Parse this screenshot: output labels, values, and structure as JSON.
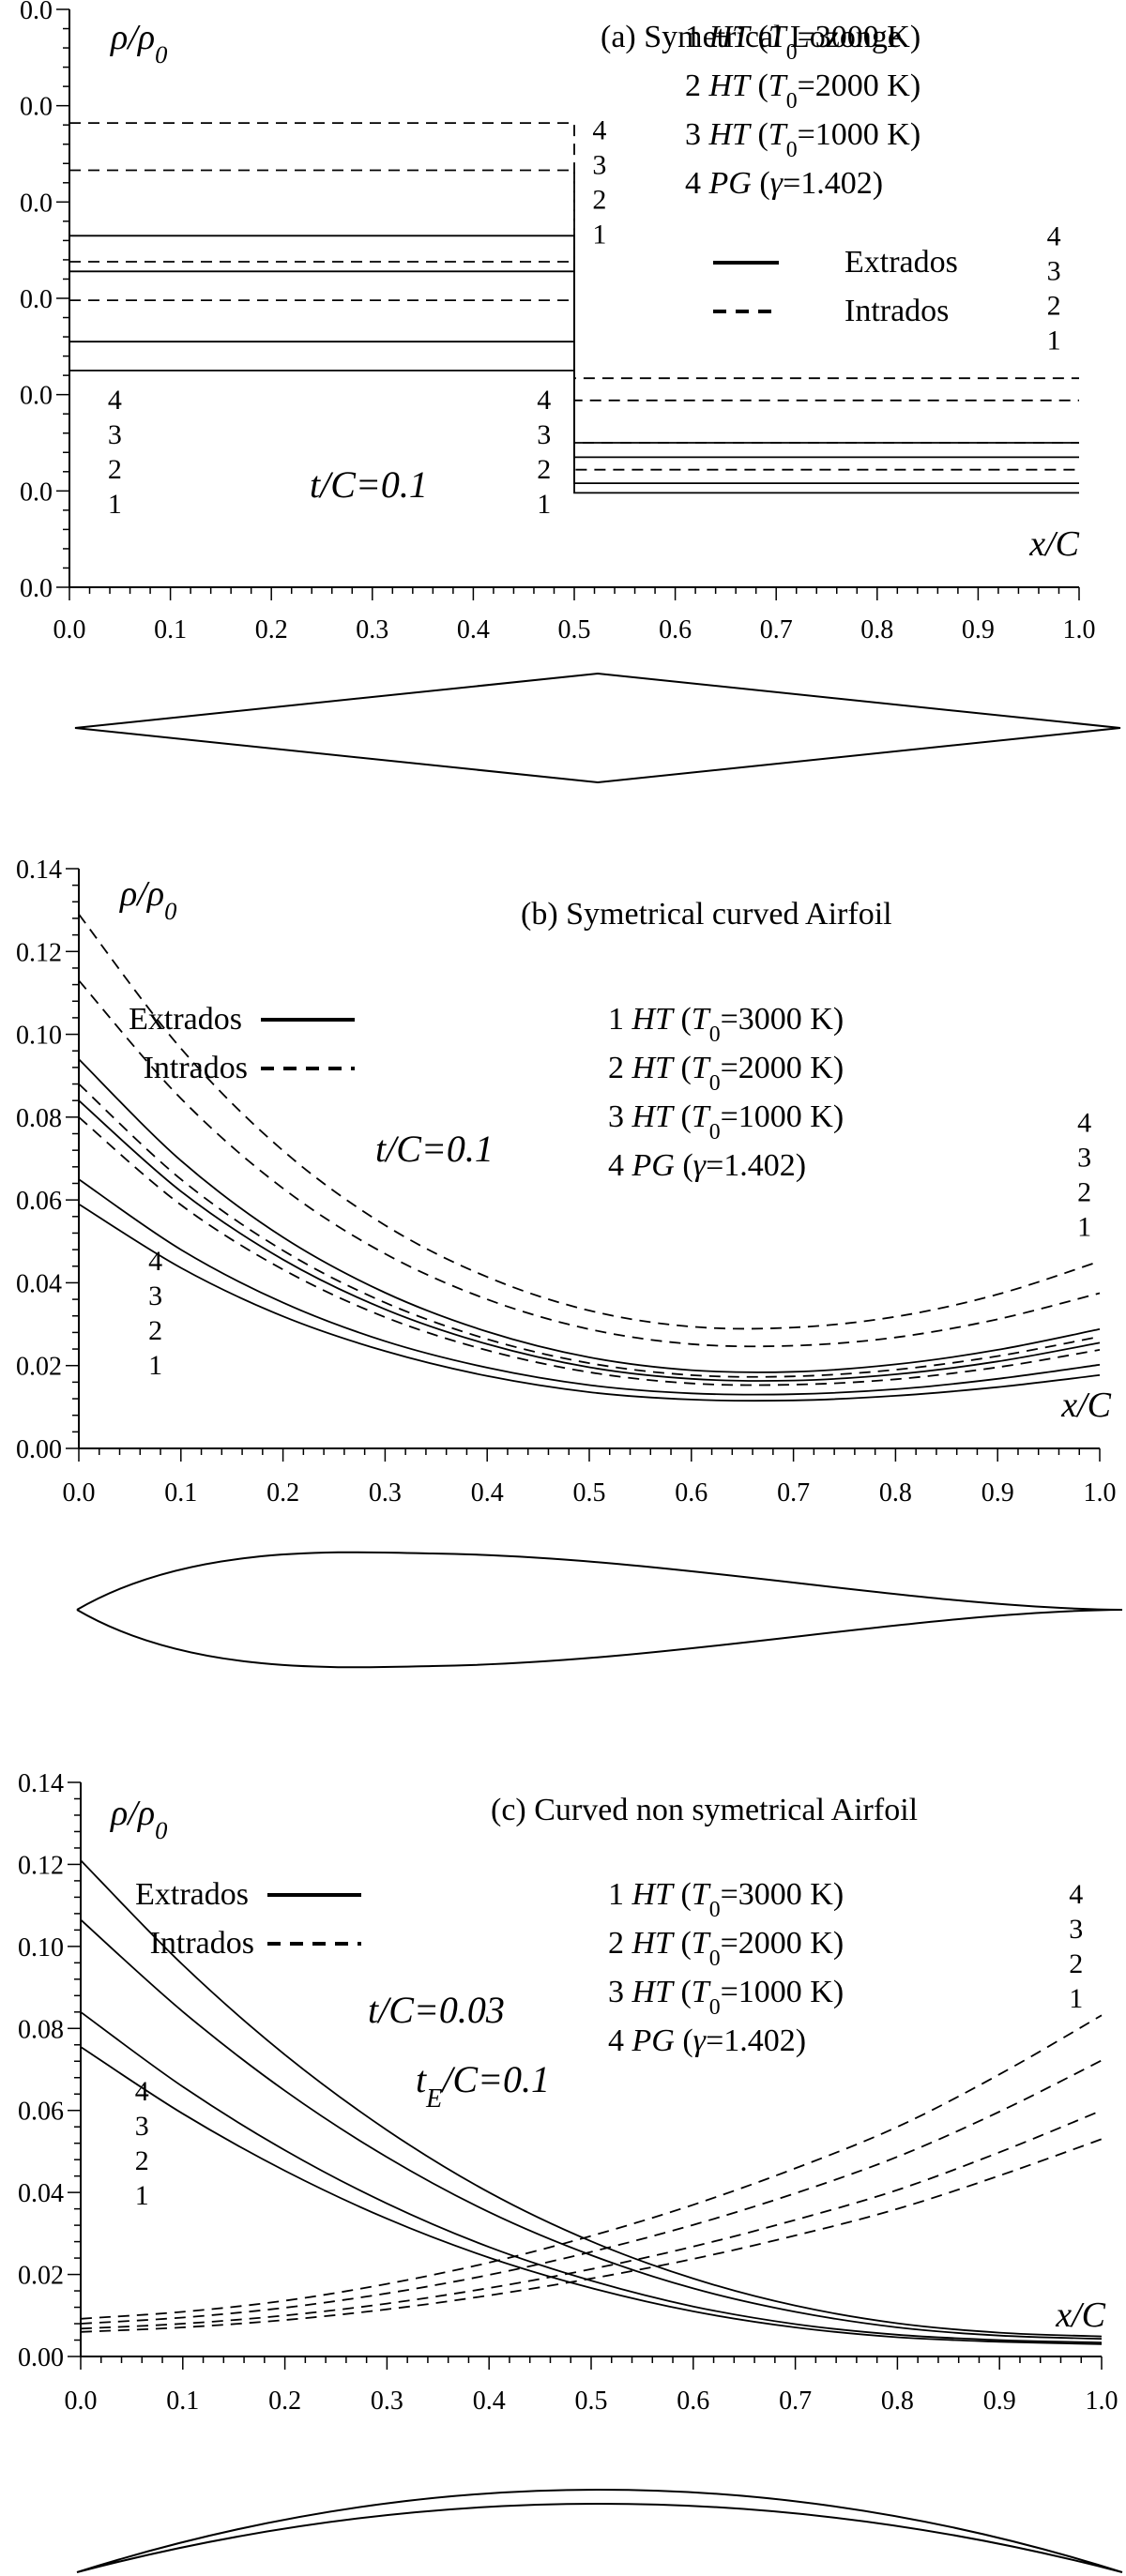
{
  "chart_data": [
    {
      "type": "line",
      "title": "(a)  Symetrical Lozonge",
      "ylabel": "ρ/ρ0",
      "xlabel": "x/C",
      "param_lines": [
        "t/C=0.1"
      ],
      "xlim": [
        0,
        1
      ],
      "ylim": [
        0,
        0.06
      ],
      "x_ticks": [
        0.0,
        0.1,
        0.2,
        0.3,
        0.4,
        0.5,
        0.6,
        0.7,
        0.8,
        0.9,
        1.0
      ],
      "x_tick_labels": [
        "0.0",
        "0.1",
        "0.2",
        "0.3",
        "0.4",
        "0.5",
        "0.6",
        "0.7",
        "0.8",
        "0.9",
        "1.0"
      ],
      "y_ticks": [
        0,
        0.01,
        0.02,
        0.03,
        0.04,
        0.05,
        0.06
      ],
      "y_tick_labels": [
        "0.0",
        "0.0",
        "0.0",
        "0.0",
        "0.0",
        "0.0",
        "0.0"
      ],
      "curve_label_groups": [
        {
          "x": 0.045,
          "y_top": 0.0185,
          "labels": [
            "4",
            "3",
            "2",
            "1"
          ]
        },
        {
          "x": 0.47,
          "y_top": 0.0185,
          "labels": [
            "4",
            "3",
            "2",
            "1"
          ]
        },
        {
          "x": 0.525,
          "y_top": 0.0465,
          "labels": [
            "4",
            "3",
            "2",
            "1"
          ]
        },
        {
          "x": 0.975,
          "y_top": 0.0355,
          "labels": [
            "4",
            "3",
            "2",
            "1"
          ]
        }
      ],
      "legend_cases": [
        {
          "num": "1",
          "model": "HT",
          "param": "T0=3000 K"
        },
        {
          "num": "2",
          "model": "HT",
          "param": "T0=2000 K"
        },
        {
          "num": "3",
          "model": "HT",
          "param": "T0=1000 K"
        },
        {
          "num": "4",
          "model": "PG",
          "param": "γ=1.402"
        }
      ],
      "legend_styles": [
        {
          "label": "Extrados",
          "dash": "solid"
        },
        {
          "label": "Intrados",
          "dash": "dashed"
        }
      ],
      "series": [
        {
          "case": "1",
          "surface": "Extrados",
          "x": [
            0,
            0.5,
            0.5,
            1.0
          ],
          "y": [
            0.0225,
            0.0225,
            0.0098,
            0.0098
          ]
        },
        {
          "case": "2",
          "surface": "Extrados",
          "x": [
            0,
            0.5,
            0.5,
            1.0
          ],
          "y": [
            0.0255,
            0.0255,
            0.0108,
            0.0108
          ]
        },
        {
          "case": "3",
          "surface": "Extrados",
          "x": [
            0,
            0.5,
            0.5,
            1.0
          ],
          "y": [
            0.0328,
            0.0328,
            0.0135,
            0.0135
          ]
        },
        {
          "case": "4",
          "surface": "Extrados",
          "x": [
            0,
            0.5,
            0.5,
            1.0
          ],
          "y": [
            0.0365,
            0.0365,
            0.015,
            0.015
          ]
        },
        {
          "case": "1",
          "surface": "Intrados",
          "x": [
            0,
            0.5,
            0.5,
            1.0
          ],
          "y": [
            0.0298,
            0.0298,
            0.0122,
            0.0122
          ]
        },
        {
          "case": "2",
          "surface": "Intrados",
          "x": [
            0,
            0.5,
            0.5,
            1.0
          ],
          "y": [
            0.0338,
            0.0338,
            0.015,
            0.015
          ]
        },
        {
          "case": "3",
          "surface": "Intrados",
          "x": [
            0,
            0.5,
            0.5,
            1.0
          ],
          "y": [
            0.0433,
            0.0433,
            0.0194,
            0.0194
          ]
        },
        {
          "case": "4",
          "surface": "Intrados",
          "x": [
            0,
            0.5,
            0.5,
            1.0
          ],
          "y": [
            0.0482,
            0.0482,
            0.0217,
            0.0217
          ]
        }
      ],
      "profile": {
        "name": "lozenge"
      }
    },
    {
      "type": "line",
      "title": "(b)  Symetrical curved Airfoil",
      "ylabel": "ρ/ρ0",
      "xlabel": "x/C",
      "param_lines": [
        "t/C=0.1"
      ],
      "xlim": [
        0,
        1
      ],
      "ylim": [
        0,
        0.14
      ],
      "x_ticks": [
        0.0,
        0.1,
        0.2,
        0.3,
        0.4,
        0.5,
        0.6,
        0.7,
        0.8,
        0.9,
        1.0
      ],
      "x_tick_labels": [
        "0.0",
        "0.1",
        "0.2",
        "0.3",
        "0.4",
        "0.5",
        "0.6",
        "0.7",
        "0.8",
        "0.9",
        "1.0"
      ],
      "y_ticks": [
        0,
        0.02,
        0.04,
        0.06,
        0.08,
        0.1,
        0.12,
        0.14
      ],
      "y_tick_labels": [
        "0.00",
        "0.02",
        "0.04",
        "0.06",
        "0.08",
        "0.10",
        "0.12",
        "0.14"
      ],
      "curve_label_groups": [
        {
          "x": 0.075,
          "y_top": 0.043,
          "labels": [
            "4",
            "3",
            "2",
            "1"
          ]
        },
        {
          "x": 0.985,
          "y_top": 0.0765,
          "labels": [
            "4",
            "3",
            "2",
            "1"
          ]
        }
      ],
      "legend_cases": [
        {
          "num": "1",
          "model": "HT",
          "param": "T0=3000 K"
        },
        {
          "num": "2",
          "model": "HT",
          "param": "T0=2000 K"
        },
        {
          "num": "3",
          "model": "HT",
          "param": "T0=1000 K"
        },
        {
          "num": "4",
          "model": "PG",
          "param": "γ=1.402)"
        }
      ],
      "legend_styles": [
        {
          "label": "Extrados",
          "dash": "solid"
        },
        {
          "label": "Intrados",
          "dash": "dashed"
        }
      ],
      "series": [
        {
          "case": "1",
          "surface": "Extrados",
          "x": [
            0,
            0.1,
            0.2,
            0.3,
            0.4,
            0.5,
            0.6,
            0.7,
            0.8,
            0.9,
            1.0
          ],
          "y": [
            0.059,
            0.0436,
            0.0319,
            0.0235,
            0.0175,
            0.0136,
            0.0118,
            0.0116,
            0.0127,
            0.0148,
            0.0177
          ]
        },
        {
          "case": "2",
          "surface": "Extrados",
          "x": [
            0,
            0.1,
            0.2,
            0.3,
            0.4,
            0.5,
            0.6,
            0.7,
            0.8,
            0.9,
            1.0
          ],
          "y": [
            0.065,
            0.048,
            0.0352,
            0.0259,
            0.0195,
            0.0153,
            0.0133,
            0.0131,
            0.0143,
            0.0168,
            0.0202
          ]
        },
        {
          "case": "3",
          "surface": "Extrados",
          "x": [
            0,
            0.1,
            0.2,
            0.3,
            0.4,
            0.5,
            0.6,
            0.7,
            0.8,
            0.9,
            1.0
          ],
          "y": [
            0.084,
            0.0621,
            0.0456,
            0.0336,
            0.0252,
            0.0196,
            0.0168,
            0.0164,
            0.0179,
            0.021,
            0.0255
          ]
        },
        {
          "case": "4",
          "surface": "Extrados",
          "x": [
            0,
            0.1,
            0.2,
            0.3,
            0.4,
            0.5,
            0.6,
            0.7,
            0.8,
            0.9,
            1.0
          ],
          "y": [
            0.094,
            0.0695,
            0.051,
            0.0376,
            0.0282,
            0.022,
            0.0189,
            0.0185,
            0.0203,
            0.0238,
            0.0288
          ]
        },
        {
          "case": "1",
          "surface": "Intrados",
          "x": [
            0,
            0.1,
            0.2,
            0.3,
            0.4,
            0.5,
            0.6,
            0.7,
            0.8,
            0.9,
            1.0
          ],
          "y": [
            0.08,
            0.0588,
            0.0432,
            0.0317,
            0.0237,
            0.0184,
            0.0157,
            0.0154,
            0.0167,
            0.0196,
            0.0238
          ]
        },
        {
          "case": "2",
          "surface": "Intrados",
          "x": [
            0,
            0.1,
            0.2,
            0.3,
            0.4,
            0.5,
            0.6,
            0.7,
            0.8,
            0.9,
            1.0
          ],
          "y": [
            0.088,
            0.065,
            0.0478,
            0.0352,
            0.0264,
            0.0206,
            0.0177,
            0.0174,
            0.019,
            0.0223,
            0.027
          ]
        },
        {
          "case": "3",
          "surface": "Intrados",
          "x": [
            0,
            0.1,
            0.2,
            0.3,
            0.4,
            0.5,
            0.6,
            0.7,
            0.8,
            0.9,
            1.0
          ],
          "y": [
            0.113,
            0.0845,
            0.0628,
            0.047,
            0.036,
            0.0288,
            0.0252,
            0.0248,
            0.0268,
            0.0312,
            0.0375
          ]
        },
        {
          "case": "4",
          "surface": "Intrados",
          "x": [
            0,
            0.1,
            0.2,
            0.3,
            0.4,
            0.5,
            0.6,
            0.7,
            0.8,
            0.9,
            1.0
          ],
          "y": [
            0.129,
            0.0966,
            0.0719,
            0.0539,
            0.0414,
            0.0333,
            0.0294,
            0.0292,
            0.0318,
            0.0372,
            0.0452
          ]
        }
      ],
      "profile": {
        "name": "symmetric-curved"
      }
    },
    {
      "type": "line",
      "title": "(c)  Curved non symetrical Airfoil",
      "ylabel": "ρ/ρ0",
      "xlabel": "x/C",
      "param_lines": [
        "t/C=0.03",
        "tE/C=0.1"
      ],
      "xlim": [
        0,
        1
      ],
      "ylim": [
        0,
        0.14
      ],
      "x_ticks": [
        0.0,
        0.1,
        0.2,
        0.3,
        0.4,
        0.5,
        0.6,
        0.7,
        0.8,
        0.9,
        1.0
      ],
      "x_tick_labels": [
        "0.0",
        "0.1",
        "0.2",
        "0.3",
        "0.4",
        "0.5",
        "0.6",
        "0.7",
        "0.8",
        "0.9",
        "1.0"
      ],
      "y_ticks": [
        0,
        0.02,
        0.04,
        0.06,
        0.08,
        0.1,
        0.12,
        0.14
      ],
      "y_tick_labels": [
        "0.00",
        "0.02",
        "0.04",
        "0.06",
        "0.08",
        "0.10",
        "0.12",
        "0.14"
      ],
      "curve_label_groups": [
        {
          "x": 0.06,
          "y_top": 0.0625,
          "labels": [
            "4",
            "3",
            "2",
            "1"
          ]
        },
        {
          "x": 0.975,
          "y_top": 0.1105,
          "labels": [
            "4",
            "3",
            "2",
            "1"
          ]
        }
      ],
      "legend_cases": [
        {
          "num": "1",
          "model": "HT",
          "param": "T0=3000 K"
        },
        {
          "num": "2",
          "model": "HT",
          "param": "T0=2000 K"
        },
        {
          "num": "3",
          "model": "HT",
          "param": "T0=1000 K"
        },
        {
          "num": "4",
          "model": "PG",
          "param": "γ=1.402)"
        }
      ],
      "legend_styles": [
        {
          "label": "Extrados",
          "dash": "solid"
        },
        {
          "label": "Intrados",
          "dash": "dashed"
        }
      ],
      "series": [
        {
          "case": "1",
          "surface": "Extrados",
          "x": [
            0,
            0.1,
            0.2,
            0.3,
            0.4,
            0.5,
            0.6,
            0.7,
            0.8,
            0.9,
            1.0
          ],
          "y": [
            0.0755,
            0.0592,
            0.0453,
            0.0336,
            0.0241,
            0.0167,
            0.011,
            0.0071,
            0.0047,
            0.0036,
            0.003
          ]
        },
        {
          "case": "2",
          "surface": "Extrados",
          "x": [
            0,
            0.1,
            0.2,
            0.3,
            0.4,
            0.5,
            0.6,
            0.7,
            0.8,
            0.9,
            1.0
          ],
          "y": [
            0.084,
            0.0658,
            0.0503,
            0.0373,
            0.0267,
            0.0185,
            0.0122,
            0.0079,
            0.0053,
            0.004,
            0.0034
          ]
        },
        {
          "case": "3",
          "surface": "Extrados",
          "x": [
            0,
            0.1,
            0.2,
            0.3,
            0.4,
            0.5,
            0.6,
            0.7,
            0.8,
            0.9,
            1.0
          ],
          "y": [
            0.1065,
            0.0841,
            0.0648,
            0.0486,
            0.0352,
            0.0247,
            0.0166,
            0.0109,
            0.0071,
            0.0051,
            0.0043
          ]
        },
        {
          "case": "4",
          "surface": "Extrados",
          "x": [
            0,
            0.1,
            0.2,
            0.3,
            0.4,
            0.5,
            0.6,
            0.7,
            0.8,
            0.9,
            1.0
          ],
          "y": [
            0.121,
            0.0955,
            0.0736,
            0.0552,
            0.04,
            0.0281,
            0.019,
            0.0124,
            0.0081,
            0.0058,
            0.0049
          ]
        },
        {
          "case": "1",
          "surface": "Intrados",
          "x": [
            0,
            0.1,
            0.2,
            0.3,
            0.4,
            0.5,
            0.6,
            0.7,
            0.8,
            0.9,
            1.0
          ],
          "y": [
            0.006,
            0.0071,
            0.0089,
            0.0115,
            0.0149,
            0.019,
            0.0238,
            0.0295,
            0.036,
            0.0441,
            0.053
          ]
        },
        {
          "case": "2",
          "surface": "Intrados",
          "x": [
            0,
            0.1,
            0.2,
            0.3,
            0.4,
            0.5,
            0.6,
            0.7,
            0.8,
            0.9,
            1.0
          ],
          "y": [
            0.0068,
            0.008,
            0.01,
            0.0129,
            0.0167,
            0.0213,
            0.0268,
            0.0333,
            0.0406,
            0.0498,
            0.06
          ]
        },
        {
          "case": "3",
          "surface": "Intrados",
          "x": [
            0,
            0.1,
            0.2,
            0.3,
            0.4,
            0.5,
            0.6,
            0.7,
            0.8,
            0.9,
            1.0
          ],
          "y": [
            0.008,
            0.0095,
            0.0119,
            0.0154,
            0.0199,
            0.0255,
            0.0321,
            0.0398,
            0.0487,
            0.0597,
            0.0722
          ]
        },
        {
          "case": "4",
          "surface": "Intrados",
          "x": [
            0,
            0.1,
            0.2,
            0.3,
            0.4,
            0.5,
            0.6,
            0.7,
            0.8,
            0.9,
            1.0
          ],
          "y": [
            0.0092,
            0.0109,
            0.0136,
            0.0177,
            0.0229,
            0.0294,
            0.037,
            0.0459,
            0.056,
            0.0688,
            0.0832
          ]
        }
      ],
      "profile": {
        "name": "cambered"
      }
    }
  ]
}
